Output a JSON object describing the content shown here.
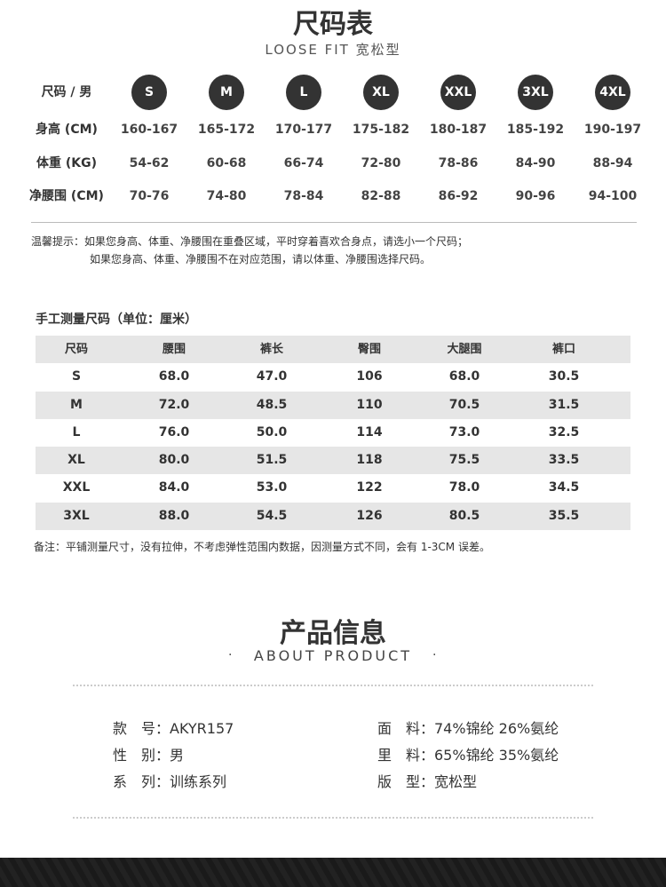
{
  "header": {
    "title": "尺码表",
    "subtitle": "LOOSE FIT 宽松型"
  },
  "size_chart": {
    "size_label": "尺码 / 男",
    "sizes": [
      "S",
      "M",
      "L",
      "XL",
      "XXL",
      "3XL",
      "4XL"
    ],
    "rows": [
      {
        "label": "身高 (CM)",
        "values": [
          "160-167",
          "165-172",
          "170-177",
          "175-182",
          "180-187",
          "185-192",
          "190-197"
        ]
      },
      {
        "label": "体重 (KG)",
        "values": [
          "54-62",
          "60-68",
          "66-74",
          "72-80",
          "78-86",
          "84-90",
          "88-94"
        ]
      },
      {
        "label": "净腰围 (CM)",
        "values": [
          "70-76",
          "74-80",
          "78-84",
          "82-88",
          "86-92",
          "90-96",
          "94-100"
        ]
      }
    ]
  },
  "tips": {
    "line1": "温馨提示：如果您身高、体重、净腰围在重叠区域，平时穿着喜欢合身点，请选小一个尺码；",
    "line2": "如果您身高、体重、净腰围不在对应范围，请以体重、净腰围选择尺码。"
  },
  "measure_table": {
    "title": "手工测量尺码（单位：厘米）",
    "headers": [
      "尺码",
      "腰围",
      "裤长",
      "臀围",
      "大腿围",
      "裤口"
    ],
    "rows": [
      [
        "S",
        "68.0",
        "47.0",
        "106",
        "68.0",
        "30.5"
      ],
      [
        "M",
        "72.0",
        "48.5",
        "110",
        "70.5",
        "31.5"
      ],
      [
        "L",
        "76.0",
        "50.0",
        "114",
        "73.0",
        "32.5"
      ],
      [
        "XL",
        "80.0",
        "51.5",
        "118",
        "75.5",
        "33.5"
      ],
      [
        "XXL",
        "84.0",
        "53.0",
        "122",
        "78.0",
        "34.5"
      ],
      [
        "3XL",
        "88.0",
        "54.5",
        "126",
        "80.5",
        "35.5"
      ]
    ],
    "note": "备注：平铺测量尺寸，没有拉伸，不考虑弹性范围内数据，因测量方式不同，会有 1-3CM 误差。"
  },
  "product": {
    "title": "产品信息",
    "subtitle": "ABOUT PRODUCT",
    "left": [
      {
        "key": "款　号：",
        "value": "AKYR157"
      },
      {
        "key": "性　别：",
        "value": "男"
      },
      {
        "key": "系　列：",
        "value": "训练系列"
      }
    ],
    "right": [
      {
        "key": "面　料：",
        "value": "74%锦纶 26%氨纶"
      },
      {
        "key": "里　料：",
        "value": "65%锦纶 35%氨纶"
      },
      {
        "key": "版　型：",
        "value": "宽松型"
      }
    ]
  },
  "colors": {
    "circle": "#333333",
    "stripe": "#e6e6e6",
    "footer": "#1a1a1a"
  }
}
